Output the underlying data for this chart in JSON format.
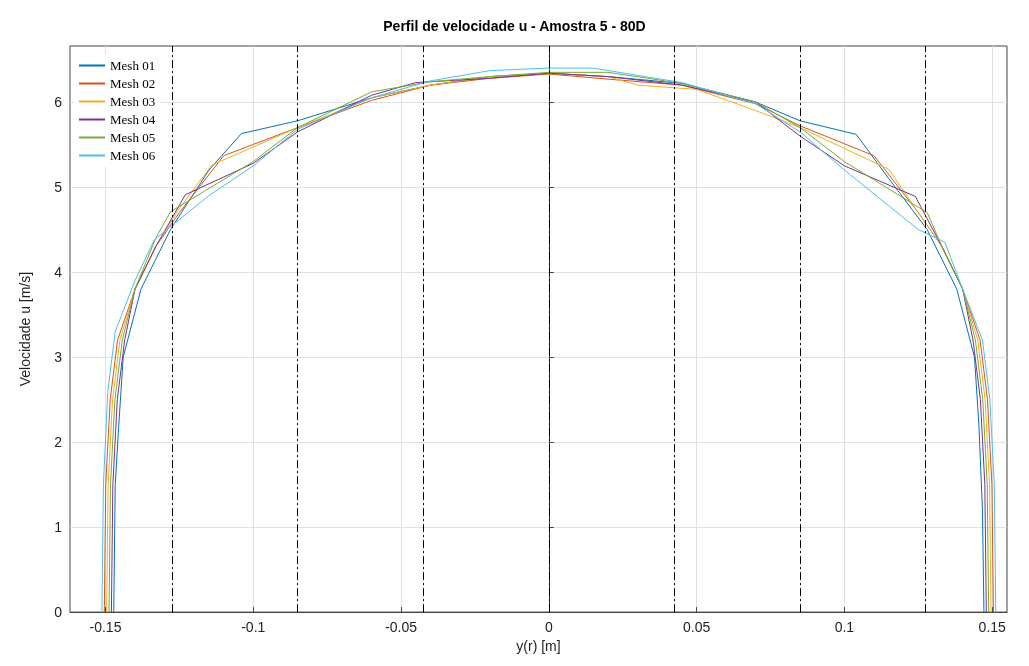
{
  "chart_data": {
    "type": "line",
    "title": "Perfil de velocidade u - Amostra 5 - 80D",
    "xlabel": "y(r) [m]",
    "ylabel": "Velocidade u [m/s]",
    "xlim": [
      -0.162,
      0.155
    ],
    "ylim": [
      0,
      6.66
    ],
    "xticks": [
      -0.15,
      -0.1,
      -0.05,
      0,
      0.05,
      0.1,
      0.15
    ],
    "yticks": [
      0,
      1,
      2,
      3,
      4,
      5,
      6
    ],
    "grid": true,
    "legend": "top left",
    "line_style": "solid",
    "marker": "none",
    "ref_lines": [
      {
        "axis": "x",
        "value": -0.1275,
        "color": "#000000",
        "line_style": "dashdot"
      },
      {
        "axis": "x",
        "value": -0.085,
        "color": "#000000",
        "line_style": "dashdot"
      },
      {
        "axis": "x",
        "value": -0.0425,
        "color": "#000000",
        "line_style": "dashdot"
      },
      {
        "axis": "x",
        "value": 0,
        "color": "#000000",
        "line_style": "dashdot"
      },
      {
        "axis": "x",
        "value": 0.0425,
        "color": "#000000",
        "line_style": "dashdot"
      },
      {
        "axis": "x",
        "value": 0.085,
        "color": "#000000",
        "line_style": "dashdot"
      },
      {
        "axis": "x",
        "value": 0.1275,
        "color": "#000000",
        "line_style": "dashdot"
      }
    ],
    "series": [
      {
        "name": "Mesh 01",
        "color": "#0072bd",
        "x": [
          -0.1472,
          -0.1467,
          -0.1455,
          -0.144,
          -0.138,
          -0.128,
          -0.115,
          -0.104,
          -0.085,
          -0.06,
          -0.04,
          -0.02,
          0,
          0.02,
          0.045,
          0.07,
          0.085,
          0.104,
          0.115,
          0.128,
          0.138,
          0.144,
          0.1455,
          0.1467,
          0.1472
        ],
        "values": [
          0,
          1.5,
          2.2,
          3.0,
          3.8,
          4.5,
          5.2,
          5.63,
          5.78,
          6.05,
          6.2,
          6.3,
          6.34,
          6.3,
          6.22,
          6.0,
          5.78,
          5.62,
          5.1,
          4.5,
          3.8,
          3.0,
          2.2,
          1.2,
          0
        ]
      },
      {
        "name": "Mesh 02",
        "color": "#d95319",
        "x": [
          -0.1504,
          -0.1499,
          -0.1484,
          -0.1459,
          -0.14,
          -0.133,
          -0.125,
          -0.11,
          -0.085,
          -0.06,
          -0.04,
          -0.02,
          0,
          0.02,
          0.045,
          0.07,
          0.085,
          0.11,
          0.125,
          0.133,
          0.14,
          0.1459,
          0.1484,
          0.1499,
          0.1504
        ],
        "values": [
          0,
          1.5,
          2.5,
          3.2,
          3.8,
          4.3,
          4.7,
          5.37,
          5.7,
          6.02,
          6.2,
          6.28,
          6.33,
          6.27,
          6.2,
          5.98,
          5.72,
          5.37,
          4.7,
          4.3,
          3.8,
          3.2,
          2.5,
          1.5,
          0
        ]
      },
      {
        "name": "Mesh 03",
        "color": "#edb120",
        "x": [
          -0.1496,
          -0.1491,
          -0.1476,
          -0.1451,
          -0.14,
          -0.133,
          -0.125,
          -0.114,
          -0.085,
          -0.06,
          -0.04,
          -0.02,
          0,
          0.02,
          0.03,
          0.05,
          0.07,
          0.085,
          0.115,
          0.125,
          0.133,
          0.14,
          0.1451,
          0.1476,
          0.1491,
          0.1496
        ],
        "values": [
          0,
          1.5,
          2.5,
          3.2,
          3.8,
          4.3,
          4.75,
          5.26,
          5.7,
          6.05,
          6.2,
          6.3,
          6.34,
          6.3,
          6.2,
          6.15,
          5.9,
          5.7,
          5.21,
          4.7,
          4.3,
          3.8,
          3.2,
          2.5,
          1.5,
          0
        ]
      },
      {
        "name": "Mesh 04",
        "color": "#7e2f8e",
        "x": [
          -0.148,
          -0.1475,
          -0.146,
          -0.1435,
          -0.14,
          -0.133,
          -0.123,
          -0.1,
          -0.085,
          -0.06,
          -0.045,
          -0.02,
          0,
          0.02,
          0.045,
          0.07,
          0.085,
          0.1,
          0.124,
          0.133,
          0.14,
          0.1435,
          0.146,
          0.1475,
          0.148
        ],
        "values": [
          0,
          1.5,
          2.5,
          3.2,
          3.8,
          4.3,
          4.91,
          5.28,
          5.65,
          6.08,
          6.23,
          6.28,
          6.34,
          6.3,
          6.2,
          6.0,
          5.6,
          5.25,
          4.89,
          4.3,
          3.8,
          3.2,
          2.5,
          1.5,
          0
        ]
      },
      {
        "name": "Mesh 05",
        "color": "#77ac30",
        "x": [
          -0.1488,
          -0.1483,
          -0.1468,
          -0.1443,
          -0.14,
          -0.133,
          -0.128,
          -0.1,
          -0.085,
          -0.06,
          -0.04,
          -0.02,
          0,
          0.02,
          0.045,
          0.07,
          0.085,
          0.1,
          0.128,
          0.133,
          0.14,
          0.1443,
          0.1468,
          0.1483,
          0.1488
        ],
        "values": [
          0,
          1.5,
          2.5,
          3.2,
          3.8,
          4.4,
          4.71,
          5.3,
          5.7,
          6.12,
          6.24,
          6.3,
          6.35,
          6.35,
          6.22,
          6.0,
          5.7,
          5.3,
          4.7,
          4.3,
          3.8,
          3.2,
          2.5,
          1.5,
          0
        ]
      },
      {
        "name": "Mesh 06",
        "color": "#4dbeee",
        "x": [
          -0.1512,
          -0.1507,
          -0.1492,
          -0.1467,
          -0.14,
          -0.1335,
          -0.115,
          -0.1,
          -0.085,
          -0.06,
          -0.04,
          -0.02,
          0,
          0.015,
          0.045,
          0.07,
          0.085,
          0.1,
          0.125,
          0.134,
          0.14,
          0.1467,
          0.1492,
          0.1507,
          0.1512
        ],
        "values": [
          0,
          1.5,
          2.6,
          3.3,
          3.9,
          4.38,
          4.9,
          5.25,
          5.68,
          6.05,
          6.25,
          6.37,
          6.4,
          6.4,
          6.23,
          5.98,
          5.65,
          5.2,
          4.5,
          4.35,
          3.8,
          3.2,
          2.5,
          1.5,
          0
        ]
      }
    ]
  }
}
